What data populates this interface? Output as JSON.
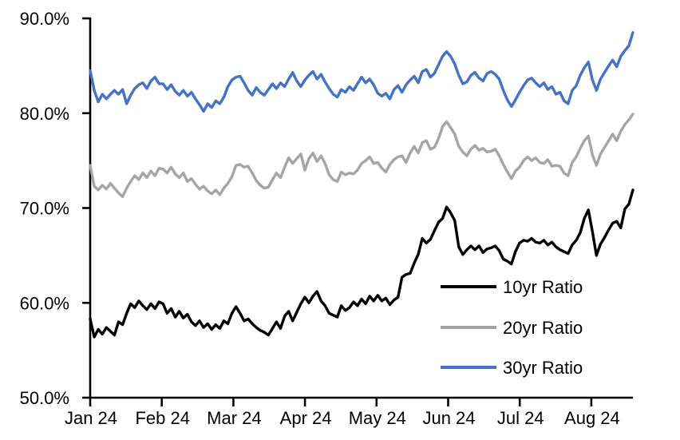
{
  "chart_data": {
    "type": "line",
    "title": "",
    "xlabel": "",
    "ylabel": "",
    "grid": false,
    "ylim": [
      50,
      90
    ],
    "y_ticks": [
      {
        "value": 90,
        "label": "90.0%"
      },
      {
        "value": 80,
        "label": "80.0%"
      },
      {
        "value": 70,
        "label": "70.0%"
      },
      {
        "value": 60,
        "label": "60.0%"
      },
      {
        "value": 50,
        "label": "50.0%"
      }
    ],
    "x_tick_labels": [
      "Jan 24",
      "Feb 24",
      "Mar 24",
      "Apr 24",
      "May 24",
      "Jun 24",
      "Jul 24",
      "Aug 24"
    ],
    "legend": {
      "position": "inside-lower-right",
      "entries": [
        "10yr Ratio",
        "20yr Ratio",
        "30yr Ratio"
      ]
    },
    "series": [
      {
        "name": "10yr Ratio",
        "color": "#000000",
        "values": [
          58.3,
          56.4,
          57.2,
          56.7,
          57.4,
          57.0,
          56.6,
          58.0,
          57.7,
          58.9,
          59.9,
          59.5,
          60.2,
          59.7,
          59.3,
          59.9,
          59.4,
          60.1,
          59.9,
          58.9,
          59.4,
          58.5,
          59.1,
          58.4,
          58.8,
          58.0,
          57.6,
          58.1,
          57.4,
          57.8,
          57.2,
          57.7,
          57.3,
          58.1,
          57.8,
          58.9,
          59.6,
          58.9,
          58.1,
          58.3,
          57.8,
          57.4,
          57.1,
          56.9,
          56.6,
          57.3,
          58.0,
          57.3,
          58.6,
          59.1,
          58.1,
          59.0,
          59.9,
          60.6,
          60.0,
          60.7,
          61.2,
          60.2,
          59.7,
          58.9,
          58.7,
          58.5,
          59.7,
          59.2,
          59.5,
          60.1,
          59.7,
          60.4,
          59.9,
          60.7,
          60.2,
          60.8,
          60.2,
          60.5,
          59.8,
          60.3,
          60.6,
          62.7,
          63.0,
          63.1,
          64.2,
          65.1,
          66.8,
          66.3,
          66.7,
          67.6,
          68.5,
          68.9,
          70.1,
          69.5,
          68.7,
          65.9,
          65.1,
          65.6,
          66.0,
          65.6,
          66.0,
          65.3,
          65.7,
          65.8,
          66.0,
          65.5,
          64.6,
          64.4,
          64.1,
          65.4,
          66.3,
          66.6,
          66.5,
          66.8,
          66.4,
          66.3,
          66.6,
          66.1,
          66.4,
          65.9,
          65.6,
          65.4,
          65.2,
          66.1,
          66.6,
          67.4,
          68.9,
          69.8,
          67.5,
          65.0,
          66.2,
          66.9,
          67.7,
          68.4,
          68.6,
          67.9,
          69.9,
          70.4,
          71.9
        ]
      },
      {
        "name": "20yr Ratio",
        "color": "#A5A5A5",
        "values": [
          74.5,
          72.3,
          71.9,
          72.4,
          72.0,
          72.6,
          72.1,
          71.6,
          71.2,
          72.1,
          72.8,
          73.4,
          73.0,
          73.7,
          73.2,
          73.9,
          73.4,
          74.2,
          74.1,
          73.7,
          74.3,
          73.6,
          73.2,
          73.7,
          72.8,
          73.1,
          72.5,
          72.0,
          72.3,
          71.8,
          71.5,
          71.9,
          71.4,
          72.1,
          72.6,
          73.3,
          74.5,
          74.6,
          74.3,
          74.4,
          73.7,
          72.9,
          72.4,
          72.1,
          72.2,
          73.0,
          73.7,
          73.2,
          74.3,
          75.3,
          74.7,
          75.2,
          75.7,
          74.0,
          75.2,
          75.8,
          74.9,
          75.5,
          74.7,
          73.5,
          73.0,
          72.8,
          73.8,
          73.5,
          73.7,
          73.6,
          74.0,
          74.7,
          75.0,
          75.4,
          74.7,
          74.8,
          74.2,
          73.8,
          74.6,
          75.1,
          75.4,
          75.5,
          74.8,
          75.8,
          76.5,
          75.8,
          76.9,
          77.1,
          76.2,
          76.4,
          77.3,
          78.6,
          79.1,
          78.5,
          77.8,
          76.5,
          75.9,
          75.5,
          76.2,
          76.6,
          76.1,
          76.3,
          75.9,
          76.0,
          76.2,
          75.5,
          74.6,
          73.8,
          73.1,
          73.9,
          74.3,
          75.0,
          75.4,
          75.0,
          75.3,
          74.8,
          74.7,
          75.1,
          74.4,
          74.5,
          74.4,
          73.7,
          73.4,
          74.8,
          75.4,
          76.3,
          77.1,
          77.6,
          75.6,
          74.5,
          75.7,
          76.4,
          77.1,
          77.8,
          77.1,
          78.1,
          78.8,
          79.3,
          79.9
        ]
      },
      {
        "name": "30yr Ratio",
        "color": "#4472C4",
        "values": [
          84.5,
          82.4,
          81.2,
          82.0,
          81.5,
          82.0,
          82.4,
          82.0,
          82.5,
          81.0,
          81.9,
          82.6,
          83.0,
          83.2,
          82.6,
          83.4,
          83.8,
          83.1,
          83.1,
          82.5,
          83.0,
          82.3,
          81.9,
          82.4,
          81.8,
          82.2,
          81.5,
          80.9,
          80.2,
          81.0,
          80.6,
          81.3,
          81.0,
          81.7,
          82.8,
          83.5,
          83.8,
          83.9,
          83.2,
          82.4,
          81.9,
          82.7,
          82.2,
          81.9,
          82.5,
          83.1,
          82.6,
          83.2,
          82.8,
          83.6,
          84.3,
          83.4,
          82.8,
          83.5,
          84.0,
          84.4,
          83.6,
          84.1,
          83.3,
          82.6,
          82.0,
          81.7,
          82.5,
          82.2,
          82.8,
          82.4,
          83.1,
          83.8,
          83.2,
          83.6,
          83.0,
          82.1,
          81.8,
          82.1,
          81.5,
          82.5,
          82.9,
          82.2,
          83.0,
          83.5,
          83.9,
          83.2,
          84.4,
          84.6,
          83.8,
          84.2,
          85.1,
          86.0,
          86.5,
          86.0,
          85.2,
          84.0,
          83.1,
          83.3,
          84.0,
          84.3,
          83.7,
          83.4,
          84.2,
          84.4,
          84.1,
          83.6,
          82.4,
          81.4,
          80.7,
          81.4,
          82.2,
          82.9,
          83.5,
          83.7,
          83.2,
          82.8,
          83.2,
          82.5,
          82.8,
          82.0,
          82.2,
          81.3,
          81.0,
          82.4,
          82.9,
          84.0,
          84.8,
          85.4,
          83.5,
          82.4,
          83.6,
          84.3,
          85.0,
          85.6,
          84.9,
          86.0,
          86.6,
          87.1,
          88.5
        ]
      }
    ]
  }
}
